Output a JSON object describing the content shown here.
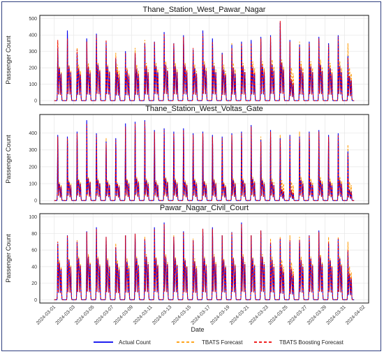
{
  "chart_data": {
    "type": "line",
    "xlabel": "Date",
    "x_ticks": [
      "2024-03-01",
      "2024-03-03",
      "2024-03-05",
      "2024-03-07",
      "2024-03-09",
      "2024-03-11",
      "2024-03-13",
      "2024-03-15",
      "2024-03-17",
      "2024-03-19",
      "2024-03-21",
      "2024-03-23",
      "2024-03-25",
      "2024-03-27",
      "2024-03-29",
      "2024-03-31",
      "2024-04-02"
    ],
    "xlim": [
      "2024-02-28T12:00",
      "2024-04-02T12:00"
    ],
    "legend_position": "bottom",
    "series_styles": [
      {
        "name": "Actual Count",
        "color": "#0000ee",
        "dash": "solid"
      },
      {
        "name": "TBATS Forecast",
        "color": "#ff9900",
        "dash": "dashed"
      },
      {
        "name": "TBATS Boosting Forecast",
        "color": "#ee0000",
        "dash": "dashed"
      }
    ],
    "panels": [
      {
        "title": "Thane_Station_West_Pawar_Nagar",
        "ylabel": "Passenger Count",
        "yticks": [
          0,
          100,
          200,
          300,
          400,
          500
        ],
        "ylim": [
          -25,
          520
        ],
        "daily_peaks": [
          [
            330,
            440,
            300,
            390,
            420,
            370,
            260,
            310,
            300,
            360,
            370,
            430,
            360,
            410,
            320,
            440,
            390,
            300,
            350,
            370,
            380,
            400,
            410,
            490,
            380,
            350,
            370,
            400,
            360,
            410,
            280
          ],
          [
            370,
            360,
            330,
            380,
            300,
            360,
            300,
            300,
            330,
            380,
            350,
            400,
            340,
            380,
            300,
            400,
            360,
            300,
            360,
            360,
            350,
            380,
            360,
            450,
            320,
            370,
            360,
            380,
            350,
            400,
            360
          ],
          [
            380,
            390,
            320,
            370,
            410,
            380,
            270,
            300,
            300,
            360,
            370,
            420,
            360,
            400,
            330,
            420,
            370,
            290,
            330,
            360,
            360,
            390,
            400,
            500,
            370,
            340,
            360,
            390,
            350,
            400,
            270
          ]
        ],
        "evening_peaks": [
          [
            200,
            210,
            190,
            200,
            220,
            210,
            170,
            180,
            190,
            200,
            210,
            220,
            210,
            210,
            200,
            220,
            210,
            190,
            200,
            210,
            200,
            210,
            220,
            230,
            120,
            200,
            210,
            220,
            200,
            210,
            150
          ],
          [
            210,
            220,
            220,
            230,
            230,
            220,
            220,
            200,
            220,
            230,
            230,
            240,
            230,
            230,
            220,
            240,
            230,
            220,
            230,
            230,
            240,
            240,
            250,
            250,
            200,
            240,
            240,
            250,
            230,
            240,
            200
          ],
          [
            200,
            210,
            200,
            210,
            220,
            210,
            190,
            190,
            200,
            210,
            210,
            220,
            210,
            220,
            200,
            220,
            210,
            190,
            200,
            210,
            210,
            220,
            220,
            230,
            130,
            210,
            210,
            220,
            200,
            210,
            150
          ]
        ]
      },
      {
        "title": "Thane_Station_West_Voltas_Gate",
        "ylabel": "Passenger Count",
        "yticks": [
          0,
          100,
          200,
          300,
          400
        ],
        "ylim": [
          -20,
          510
        ],
        "daily_peaks": [
          [
            400,
            390,
            420,
            490,
            410,
            360,
            380,
            470,
            480,
            490,
            430,
            440,
            420,
            440,
            410,
            420,
            400,
            390,
            410,
            420,
            460,
            370,
            430,
            380,
            400,
            390,
            420,
            430,
            400,
            410,
            300
          ],
          [
            370,
            380,
            350,
            300,
            340,
            380,
            350,
            340,
            390,
            380,
            350,
            330,
            380,
            340,
            380,
            360,
            380,
            310,
            380,
            380,
            350,
            390,
            390,
            400,
            340,
            420,
            380,
            390,
            350,
            380,
            340
          ],
          [
            390,
            380,
            410,
            470,
            400,
            350,
            370,
            450,
            470,
            480,
            420,
            430,
            410,
            430,
            400,
            410,
            390,
            380,
            400,
            410,
            450,
            360,
            420,
            370,
            390,
            380,
            410,
            420,
            390,
            400,
            290
          ]
        ],
        "evening_peaks": [
          [
            100,
            110,
            120,
            130,
            120,
            110,
            100,
            120,
            130,
            120,
            110,
            130,
            120,
            110,
            120,
            110,
            120,
            100,
            120,
            120,
            130,
            120,
            110,
            60,
            50,
            120,
            110,
            120,
            110,
            120,
            60
          ],
          [
            110,
            120,
            130,
            140,
            130,
            120,
            110,
            130,
            140,
            130,
            120,
            140,
            130,
            120,
            130,
            120,
            130,
            110,
            130,
            130,
            140,
            130,
            130,
            120,
            110,
            140,
            130,
            140,
            130,
            140,
            110
          ],
          [
            100,
            110,
            120,
            130,
            120,
            110,
            100,
            120,
            130,
            120,
            110,
            130,
            120,
            110,
            120,
            110,
            120,
            100,
            120,
            120,
            130,
            120,
            110,
            70,
            60,
            120,
            110,
            120,
            110,
            120,
            60
          ]
        ]
      },
      {
        "title": "Pawar_Nagar_Civil_Court",
        "ylabel": "Passenger Count",
        "yticks": [
          0,
          20,
          40,
          60,
          80,
          100
        ],
        "ylim": [
          -4,
          104
        ],
        "daily_peaks": [
          [
            70,
            80,
            72,
            85,
            90,
            78,
            65,
            80,
            82,
            75,
            90,
            96,
            78,
            85,
            74,
            88,
            90,
            80,
            84,
            96,
            80,
            86,
            70,
            75,
            72,
            74,
            80,
            86,
            70,
            75,
            60
          ],
          [
            72,
            76,
            74,
            80,
            84,
            78,
            70,
            80,
            82,
            78,
            84,
            90,
            80,
            84,
            76,
            86,
            86,
            80,
            82,
            88,
            80,
            84,
            76,
            78,
            80,
            78,
            78,
            82,
            78,
            78,
            72
          ],
          [
            72,
            80,
            72,
            84,
            88,
            78,
            66,
            80,
            82,
            76,
            88,
            94,
            78,
            84,
            74,
            88,
            88,
            80,
            84,
            94,
            80,
            86,
            72,
            76,
            74,
            74,
            80,
            84,
            72,
            76,
            62
          ]
        ],
        "evening_peaks": [
          [
            45,
            48,
            50,
            52,
            50,
            48,
            44,
            46,
            50,
            52,
            50,
            52,
            50,
            48,
            46,
            50,
            52,
            48,
            50,
            52,
            50,
            52,
            48,
            40,
            35,
            48,
            50,
            52,
            48,
            50,
            30
          ],
          [
            48,
            50,
            52,
            55,
            52,
            50,
            48,
            50,
            52,
            55,
            52,
            55,
            52,
            50,
            50,
            52,
            55,
            50,
            52,
            55,
            52,
            55,
            52,
            48,
            45,
            52,
            52,
            55,
            50,
            52,
            40
          ],
          [
            45,
            48,
            50,
            52,
            50,
            48,
            44,
            46,
            50,
            52,
            50,
            52,
            50,
            48,
            46,
            50,
            52,
            48,
            50,
            52,
            50,
            52,
            48,
            42,
            38,
            48,
            50,
            52,
            48,
            50,
            32
          ]
        ]
      }
    ],
    "series": [
      {
        "name": "Actual Count"
      },
      {
        "name": "TBATS Forecast"
      },
      {
        "name": "TBATS Boosting Forecast"
      }
    ]
  }
}
